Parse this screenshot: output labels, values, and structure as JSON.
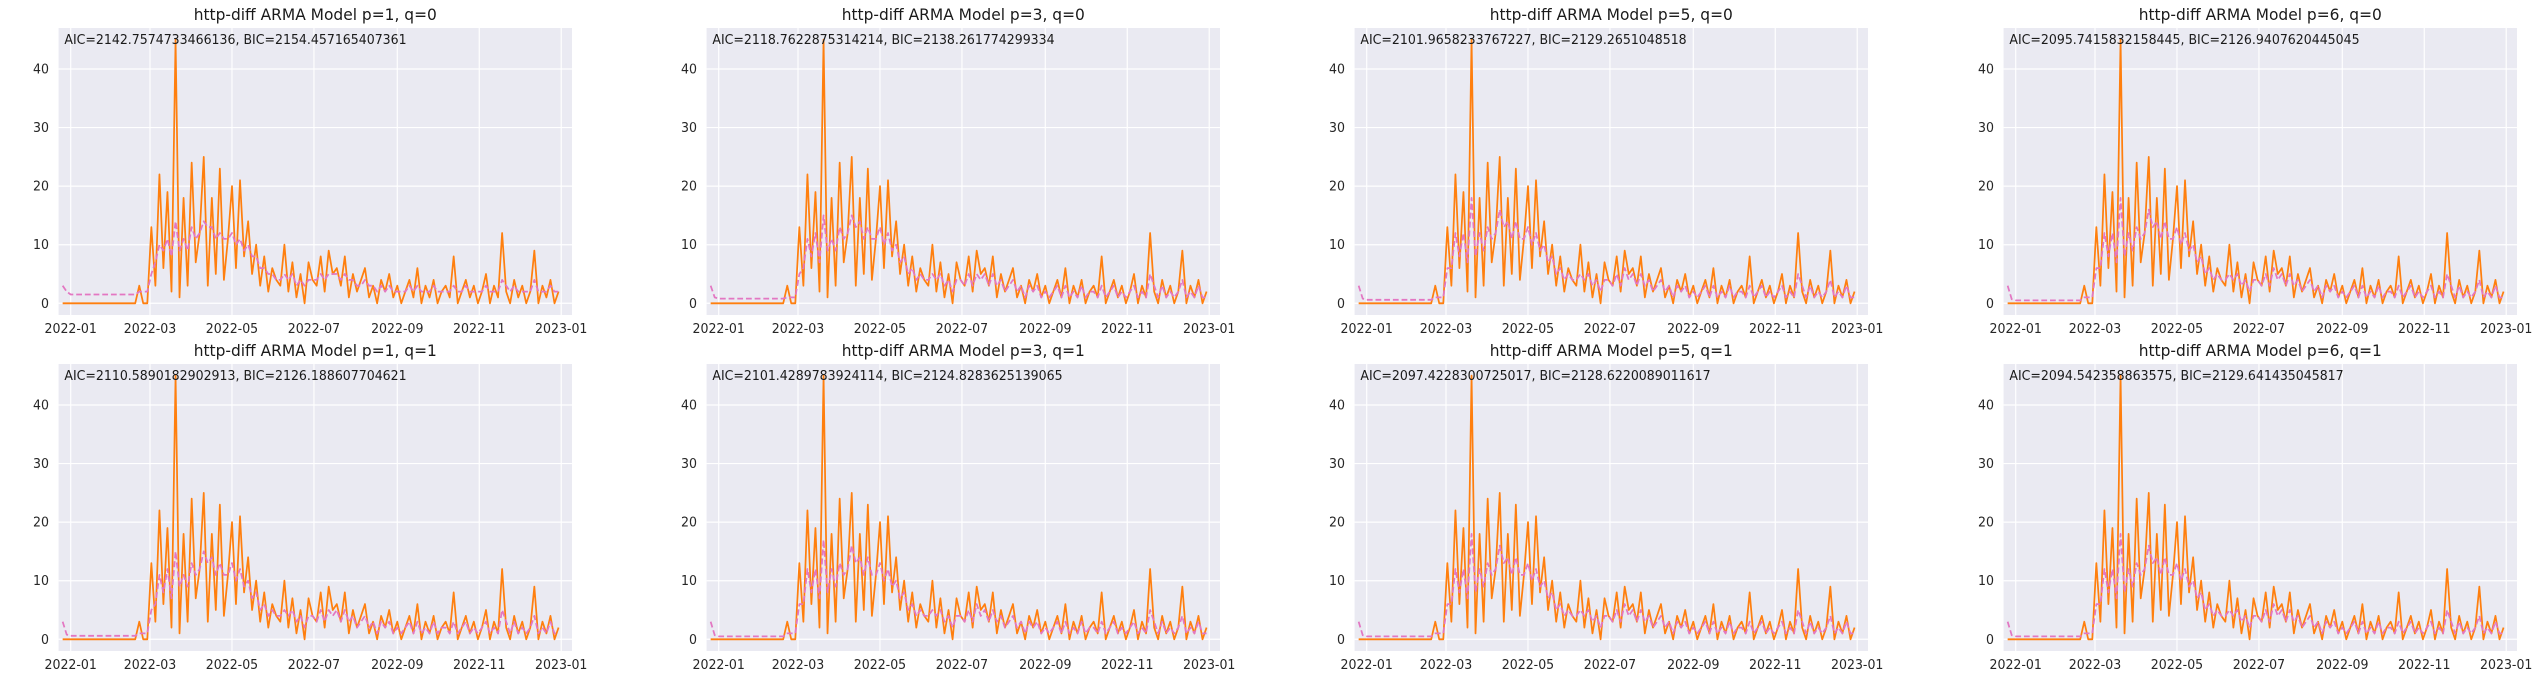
{
  "colors": {
    "background": "#eaeaf2",
    "grid": "#ffffff",
    "actual": "#ff7f0e",
    "fitted": "#e377c2"
  },
  "chart_data": [
    {
      "type": "line",
      "title": "http-diff ARMA Model p=1, q=0",
      "annotation": "AIC=2142.7574733466136, BIC=2154.457165407361",
      "x_ticks": [
        "2022-01",
        "2022-03",
        "2022-05",
        "2022-07",
        "2022-09",
        "2022-11",
        "2023-01"
      ],
      "y_ticks": [
        "0",
        "10",
        "20",
        "30",
        "40"
      ],
      "ylim": [
        -2,
        47
      ],
      "xlim": [
        "2021-12-23",
        "2023-01-09"
      ],
      "series": [
        {
          "style": "solid"
        },
        {
          "style": "dashed"
        }
      ]
    },
    {
      "type": "line",
      "title": "http-diff ARMA Model p=3, q=0",
      "annotation": "AIC=2118.7622875314214, BIC=2138.261774299334",
      "x_ticks": [
        "2022-01",
        "2022-03",
        "2022-05",
        "2022-07",
        "2022-09",
        "2022-11",
        "2023-01"
      ],
      "y_ticks": [
        "0",
        "10",
        "20",
        "30",
        "40"
      ],
      "ylim": [
        -2,
        47
      ],
      "xlim": [
        "2021-12-23",
        "2023-01-09"
      ],
      "series": [
        {
          "style": "solid"
        },
        {
          "style": "dashed"
        }
      ]
    },
    {
      "type": "line",
      "title": "http-diff ARMA Model p=5, q=0",
      "annotation": "AIC=2101.9658233767227, BIC=2129.2651048518",
      "x_ticks": [
        "2022-01",
        "2022-03",
        "2022-05",
        "2022-07",
        "2022-09",
        "2022-11",
        "2023-01"
      ],
      "y_ticks": [
        "0",
        "10",
        "20",
        "30",
        "40"
      ],
      "ylim": [
        -2,
        47
      ],
      "xlim": [
        "2021-12-23",
        "2023-01-09"
      ],
      "series": [
        {
          "style": "solid"
        },
        {
          "style": "dashed"
        }
      ]
    },
    {
      "type": "line",
      "title": "http-diff ARMA Model p=6, q=0",
      "annotation": "AIC=2095.7415832158445, BIC=2126.9407620445045",
      "x_ticks": [
        "2022-01",
        "2022-03",
        "2022-05",
        "2022-07",
        "2022-09",
        "2022-11",
        "2023-01"
      ],
      "y_ticks": [
        "0",
        "10",
        "20",
        "30",
        "40"
      ],
      "ylim": [
        -2,
        47
      ],
      "xlim": [
        "2021-12-23",
        "2023-01-09"
      ],
      "series": [
        {
          "style": "solid"
        },
        {
          "style": "dashed"
        }
      ]
    },
    {
      "type": "line",
      "title": "http-diff ARMA Model p=1, q=1",
      "annotation": "AIC=2110.5890182902913, BIC=2126.188607704621",
      "x_ticks": [
        "2022-01",
        "2022-03",
        "2022-05",
        "2022-07",
        "2022-09",
        "2022-11",
        "2023-01"
      ],
      "y_ticks": [
        "0",
        "10",
        "20",
        "30",
        "40"
      ],
      "ylim": [
        -2,
        47
      ],
      "xlim": [
        "2021-12-23",
        "2023-01-09"
      ],
      "series": [
        {
          "style": "solid"
        },
        {
          "style": "dashed"
        }
      ]
    },
    {
      "type": "line",
      "title": "http-diff ARMA Model p=3, q=1",
      "annotation": "AIC=2101.4289783924114, BIC=2124.8283625139065",
      "x_ticks": [
        "2022-01",
        "2022-03",
        "2022-05",
        "2022-07",
        "2022-09",
        "2022-11",
        "2023-01"
      ],
      "y_ticks": [
        "0",
        "10",
        "20",
        "30",
        "40"
      ],
      "ylim": [
        -2,
        47
      ],
      "xlim": [
        "2021-12-23",
        "2023-01-09"
      ],
      "series": [
        {
          "style": "solid"
        },
        {
          "style": "dashed"
        }
      ]
    },
    {
      "type": "line",
      "title": "http-diff ARMA Model p=5, q=1",
      "annotation": "AIC=2097.4228300725017, BIC=2128.6220089011617",
      "x_ticks": [
        "2022-01",
        "2022-03",
        "2022-05",
        "2022-07",
        "2022-09",
        "2022-11",
        "2023-01"
      ],
      "y_ticks": [
        "0",
        "10",
        "20",
        "30",
        "40"
      ],
      "ylim": [
        -2,
        47
      ],
      "xlim": [
        "2021-12-23",
        "2023-01-09"
      ],
      "series": [
        {
          "style": "solid"
        },
        {
          "style": "dashed"
        }
      ]
    },
    {
      "type": "line",
      "title": "http-diff ARMA Model p=6, q=1",
      "annotation": "AIC=2094.542358863575, BIC=2129.641435045817",
      "x_ticks": [
        "2022-01",
        "2022-03",
        "2022-05",
        "2022-07",
        "2022-09",
        "2022-11",
        "2023-01"
      ],
      "y_ticks": [
        "0",
        "10",
        "20",
        "30",
        "40"
      ],
      "ylim": [
        -2,
        47
      ],
      "xlim": [
        "2021-12-23",
        "2023-01-09"
      ],
      "series": [
        {
          "style": "solid"
        },
        {
          "style": "dashed"
        }
      ]
    }
  ],
  "actual_series": {
    "start": "2021-12-26",
    "step_days": 3,
    "values": [
      0,
      0,
      0,
      0,
      0,
      0,
      0,
      0,
      0,
      0,
      0,
      0,
      0,
      0,
      0,
      0,
      0,
      0,
      0,
      3,
      0,
      0,
      13,
      3,
      22,
      6,
      19,
      2,
      45,
      1,
      18,
      3,
      24,
      7,
      12,
      25,
      3,
      18,
      5,
      23,
      4,
      11,
      20,
      6,
      21,
      8,
      14,
      5,
      10,
      3,
      8,
      2,
      6,
      4,
      3,
      10,
      2,
      7,
      1,
      5,
      0,
      7,
      4,
      3,
      8,
      2,
      9,
      5,
      6,
      3,
      8,
      1,
      5,
      2,
      4,
      6,
      1,
      3,
      0,
      4,
      2,
      5,
      1,
      3,
      0,
      2,
      4,
      1,
      6,
      0,
      3,
      1,
      4,
      0,
      2,
      3,
      1,
      8,
      0,
      2,
      4,
      1,
      3,
      0,
      2,
      5,
      0,
      3,
      1,
      12,
      2,
      0,
      4,
      1,
      3,
      0,
      2,
      9,
      0,
      3,
      1,
      4,
      0,
      2
    ]
  },
  "fitted_series": [
    {
      "start": "2021-12-26",
      "step_days": 3,
      "values": [
        3,
        2,
        1.5,
        1.5,
        1.5,
        1.5,
        1.5,
        1.5,
        1.5,
        1.5,
        1.5,
        1.5,
        1.5,
        1.5,
        1.5,
        1.5,
        1.5,
        1.5,
        1.5,
        2,
        2,
        2,
        5,
        7,
        10,
        9,
        11,
        8,
        14,
        9,
        11,
        9,
        13,
        11,
        12,
        14,
        13,
        13,
        11,
        12,
        11,
        11,
        12,
        10,
        11,
        9,
        10,
        8,
        8,
        6,
        6,
        5,
        5,
        4,
        4,
        5,
        4,
        5,
        3,
        4,
        3,
        4,
        4,
        4,
        5,
        4,
        5,
        5,
        5,
        4,
        5,
        4,
        4,
        3,
        3,
        4,
        3,
        3,
        2,
        3,
        2,
        3,
        2,
        2,
        2,
        2,
        3,
        2,
        3,
        2,
        2,
        2,
        3,
        2,
        2,
        2,
        2,
        3,
        2,
        2,
        3,
        2,
        2,
        2,
        2,
        3,
        2,
        2,
        2,
        4,
        3,
        2,
        3,
        2,
        2,
        2,
        2,
        4,
        2,
        2,
        2,
        3,
        2,
        2
      ]
    },
    {
      "start": "2021-12-26",
      "step_days": 3,
      "values": [
        3,
        1,
        0.8,
        0.8,
        0.8,
        0.8,
        0.8,
        0.8,
        0.8,
        0.8,
        0.8,
        0.8,
        0.8,
        0.8,
        0.8,
        0.8,
        0.8,
        0.8,
        0.8,
        1,
        1,
        1,
        5,
        6,
        11,
        8,
        12,
        7,
        15,
        9,
        11,
        9,
        13,
        11,
        12,
        15,
        13,
        14,
        11,
        13,
        11,
        11,
        13,
        10,
        12,
        9,
        10,
        7,
        8,
        5,
        6,
        4,
        5,
        4,
        4,
        5,
        4,
        5,
        3,
        4,
        2,
        4,
        4,
        3,
        5,
        3,
        5,
        4,
        5,
        3,
        5,
        3,
        4,
        2,
        3,
        4,
        2,
        3,
        1,
        3,
        2,
        3,
        1,
        2,
        1,
        2,
        3,
        1,
        3,
        1,
        2,
        1,
        3,
        1,
        2,
        2,
        1,
        3,
        1,
        2,
        3,
        1,
        2,
        1,
        2,
        3,
        1,
        2,
        1,
        5,
        3,
        1,
        3,
        1,
        2,
        1,
        2,
        4,
        1,
        2,
        1,
        3,
        1,
        1
      ]
    },
    {
      "start": "2021-12-26",
      "step_days": 3,
      "values": [
        3,
        0.8,
        0.6,
        0.6,
        0.6,
        0.6,
        0.6,
        0.6,
        0.6,
        0.6,
        0.6,
        0.6,
        0.6,
        0.6,
        0.6,
        0.6,
        0.6,
        0.6,
        0.6,
        1,
        1,
        1,
        6,
        6,
        12,
        8,
        12,
        7,
        18,
        8,
        12,
        9,
        13,
        11,
        12,
        16,
        13,
        14,
        11,
        14,
        11,
        11,
        13,
        10,
        12,
        9,
        10,
        7,
        8,
        5,
        6,
        4,
        5,
        4,
        4,
        5,
        4,
        5,
        3,
        4,
        2,
        4,
        4,
        3,
        5,
        3,
        6,
        4,
        5,
        3,
        5,
        3,
        4,
        2,
        3,
        4,
        2,
        3,
        1,
        3,
        2,
        3,
        1,
        2,
        1,
        2,
        3,
        1,
        3,
        1,
        2,
        1,
        3,
        1,
        2,
        2,
        1,
        3,
        1,
        2,
        3,
        1,
        2,
        1,
        2,
        3,
        1,
        2,
        1,
        5,
        3,
        1,
        3,
        1,
        2,
        1,
        2,
        4,
        1,
        2,
        1,
        3,
        1,
        1
      ]
    },
    {
      "start": "2021-12-26",
      "step_days": 3,
      "values": [
        3,
        0.7,
        0.5,
        0.5,
        0.5,
        0.5,
        0.5,
        0.5,
        0.5,
        0.5,
        0.5,
        0.5,
        0.5,
        0.5,
        0.5,
        0.5,
        0.5,
        0.5,
        0.5,
        1,
        1,
        1,
        6,
        6,
        12,
        8,
        12,
        7,
        18,
        8,
        12,
        9,
        13,
        11,
        12,
        16,
        13,
        14,
        11,
        14,
        11,
        11,
        13,
        10,
        12,
        9,
        10,
        7,
        8,
        5,
        6,
        4,
        5,
        4,
        4,
        5,
        4,
        5,
        3,
        4,
        2,
        4,
        4,
        3,
        5,
        3,
        6,
        4,
        5,
        3,
        5,
        3,
        4,
        2,
        3,
        4,
        2,
        3,
        1,
        3,
        2,
        3,
        1,
        2,
        1,
        2,
        3,
        1,
        3,
        1,
        2,
        1,
        3,
        1,
        2,
        2,
        1,
        3,
        1,
        2,
        3,
        1,
        2,
        1,
        2,
        3,
        1,
        2,
        1,
        5,
        3,
        1,
        3,
        1,
        2,
        1,
        2,
        4,
        1,
        2,
        1,
        3,
        1,
        1
      ]
    },
    {
      "start": "2021-12-26",
      "step_days": 3,
      "values": [
        3,
        0.8,
        0.6,
        0.6,
        0.6,
        0.6,
        0.6,
        0.6,
        0.6,
        0.6,
        0.6,
        0.6,
        0.6,
        0.6,
        0.6,
        0.6,
        0.6,
        0.6,
        0.6,
        1,
        1,
        1,
        5,
        6,
        11,
        8,
        12,
        7,
        15,
        9,
        11,
        9,
        13,
        11,
        12,
        15,
        13,
        14,
        11,
        13,
        11,
        11,
        13,
        10,
        12,
        9,
        10,
        7,
        8,
        5,
        6,
        4,
        5,
        4,
        4,
        5,
        4,
        5,
        3,
        4,
        2,
        4,
        4,
        3,
        5,
        3,
        5,
        4,
        5,
        3,
        5,
        3,
        4,
        2,
        3,
        4,
        2,
        3,
        1,
        3,
        2,
        3,
        1,
        2,
        1,
        2,
        3,
        1,
        3,
        1,
        2,
        1,
        3,
        1,
        2,
        2,
        1,
        3,
        1,
        2,
        3,
        1,
        2,
        1,
        2,
        3,
        1,
        2,
        1,
        5,
        3,
        1,
        3,
        1,
        2,
        1,
        2,
        4,
        1,
        2,
        1,
        3,
        1,
        1
      ]
    },
    {
      "start": "2021-12-26",
      "step_days": 3,
      "values": [
        3,
        0.7,
        0.5,
        0.5,
        0.5,
        0.5,
        0.5,
        0.5,
        0.5,
        0.5,
        0.5,
        0.5,
        0.5,
        0.5,
        0.5,
        0.5,
        0.5,
        0.5,
        0.5,
        1,
        1,
        1,
        6,
        6,
        12,
        8,
        12,
        7,
        17,
        8,
        12,
        9,
        13,
        11,
        12,
        16,
        13,
        14,
        11,
        14,
        11,
        11,
        13,
        10,
        12,
        9,
        10,
        7,
        8,
        5,
        6,
        4,
        5,
        4,
        4,
        5,
        4,
        5,
        3,
        4,
        2,
        4,
        4,
        3,
        5,
        3,
        6,
        4,
        5,
        3,
        5,
        3,
        4,
        2,
        3,
        4,
        2,
        3,
        1,
        3,
        2,
        3,
        1,
        2,
        1,
        2,
        3,
        1,
        3,
        1,
        2,
        1,
        3,
        1,
        2,
        2,
        1,
        3,
        1,
        2,
        3,
        1,
        2,
        1,
        2,
        3,
        1,
        2,
        1,
        5,
        3,
        1,
        3,
        1,
        2,
        1,
        2,
        4,
        1,
        2,
        1,
        3,
        1,
        1
      ]
    },
    {
      "start": "2021-12-26",
      "step_days": 3,
      "values": [
        3,
        0.7,
        0.5,
        0.5,
        0.5,
        0.5,
        0.5,
        0.5,
        0.5,
        0.5,
        0.5,
        0.5,
        0.5,
        0.5,
        0.5,
        0.5,
        0.5,
        0.5,
        0.5,
        1,
        1,
        1,
        6,
        6,
        12,
        8,
        12,
        7,
        18,
        8,
        12,
        9,
        13,
        11,
        12,
        16,
        13,
        14,
        11,
        14,
        11,
        11,
        13,
        10,
        12,
        9,
        10,
        7,
        8,
        5,
        6,
        4,
        5,
        4,
        4,
        5,
        4,
        5,
        3,
        4,
        2,
        4,
        4,
        3,
        5,
        3,
        6,
        4,
        5,
        3,
        5,
        3,
        4,
        2,
        3,
        4,
        2,
        3,
        1,
        3,
        2,
        3,
        1,
        2,
        1,
        2,
        3,
        1,
        3,
        1,
        2,
        1,
        3,
        1,
        2,
        2,
        1,
        3,
        1,
        2,
        3,
        1,
        2,
        1,
        2,
        3,
        1,
        2,
        1,
        5,
        3,
        1,
        3,
        1,
        2,
        1,
        2,
        4,
        1,
        2,
        1,
        3,
        1,
        1
      ]
    },
    {
      "start": "2021-12-26",
      "step_days": 3,
      "values": [
        3,
        0.7,
        0.5,
        0.5,
        0.5,
        0.5,
        0.5,
        0.5,
        0.5,
        0.5,
        0.5,
        0.5,
        0.5,
        0.5,
        0.5,
        0.5,
        0.5,
        0.5,
        0.5,
        1,
        1,
        1,
        6,
        6,
        12,
        8,
        12,
        7,
        18,
        8,
        12,
        9,
        13,
        11,
        12,
        16,
        13,
        14,
        11,
        14,
        11,
        11,
        13,
        10,
        12,
        9,
        10,
        7,
        8,
        5,
        6,
        4,
        5,
        4,
        4,
        5,
        4,
        5,
        3,
        4,
        2,
        4,
        4,
        3,
        5,
        3,
        6,
        4,
        5,
        3,
        5,
        3,
        4,
        2,
        3,
        4,
        2,
        3,
        1,
        3,
        2,
        3,
        1,
        2,
        1,
        2,
        3,
        1,
        3,
        1,
        2,
        1,
        3,
        1,
        2,
        2,
        1,
        3,
        1,
        2,
        3,
        1,
        2,
        1,
        2,
        3,
        1,
        2,
        1,
        5,
        3,
        1,
        3,
        1,
        2,
        1,
        2,
        4,
        1,
        2,
        1,
        3,
        1,
        1
      ]
    }
  ]
}
